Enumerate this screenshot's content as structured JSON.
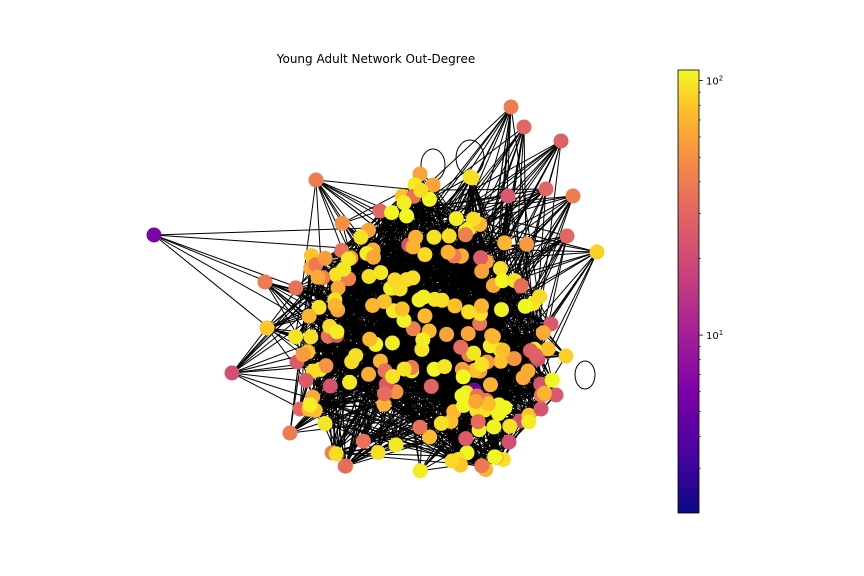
{
  "title": "Young Adult Network Out-Degree",
  "colorbar": {
    "colormap": "plasma",
    "scale": "log",
    "range": [
      2,
      110
    ],
    "ticks": [
      {
        "value": 100,
        "base": "10",
        "exp": "2"
      },
      {
        "value": 10,
        "base": "10",
        "exp": "1"
      }
    ]
  },
  "network": {
    "directed": true,
    "node_color_meaning": "out-degree",
    "edge_color": "#000000",
    "node_count_approx": 230
  }
}
